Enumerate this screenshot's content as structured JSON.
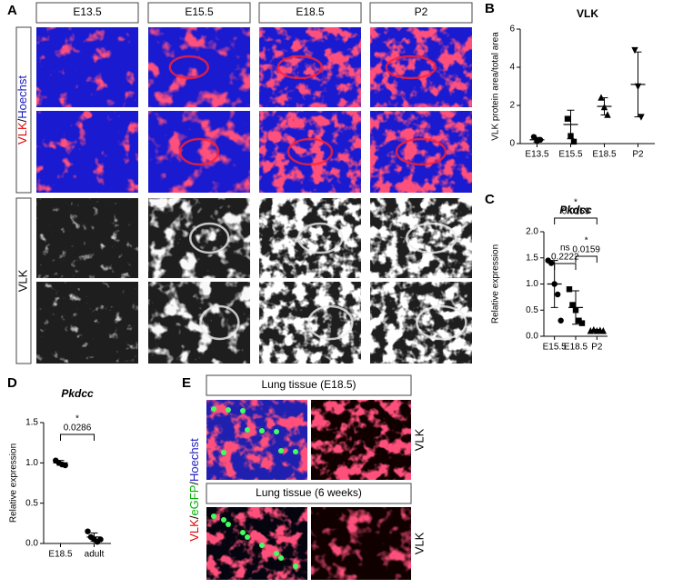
{
  "figure": {
    "panel_labels": [
      "A",
      "B",
      "C",
      "D",
      "E"
    ],
    "panel_a": {
      "columns": [
        "E13.5",
        "E15.5",
        "E18.5",
        "P2"
      ],
      "row_label_merge": [
        "VLK",
        "/",
        "Hoechst"
      ],
      "row_label_single": "VLK"
    },
    "panel_e": {
      "row_titles": [
        "Lung tissue (E18.5)",
        "Lung tissue (6 weeks)"
      ],
      "left_label": [
        "VLK",
        "/",
        "eGFP",
        "/",
        "Hoechst"
      ],
      "right_labels": [
        "VLK",
        "VLK"
      ]
    }
  },
  "chart_data": [
    {
      "type": "scatter-dot",
      "title": "VLK",
      "y_label": "VLK protein area/total area",
      "categories": [
        "E13.5",
        "E15.5",
        "E18.5",
        "P2"
      ],
      "ylim": [
        0,
        6
      ],
      "yticks": [
        0,
        2,
        4,
        6
      ],
      "markers": [
        "circle",
        "square",
        "triangle-up",
        "triangle-down"
      ],
      "color": "#000000",
      "points": [
        [
          0.35,
          0.15,
          0.2
        ],
        [
          1.3,
          0.4,
          0.1
        ],
        [
          2.4,
          1.9,
          1.5
        ],
        [
          4.9,
          3.0,
          1.4
        ]
      ],
      "means": [
        0.2,
        1.0,
        1.95,
        3.1
      ],
      "errors": [
        0.12,
        0.75,
        0.45,
        1.7
      ],
      "comparisons": []
    },
    {
      "type": "scatter-dot",
      "title": "Pkdcc",
      "y_label": "Relative expression",
      "categories": [
        "E15.5",
        "E18.5",
        "P2"
      ],
      "ylim": [
        0,
        2
      ],
      "yticks": [
        {
          "value": 0,
          "label": "0.0"
        },
        {
          "value": 0.5,
          "label": "0.5"
        },
        {
          "value": 1,
          "label": "1.0"
        },
        {
          "value": 1.5,
          "label": "1.5"
        },
        {
          "value": 2,
          "label": "2.0"
        }
      ],
      "markers": [
        "circle",
        "square",
        "triangle-up"
      ],
      "color": "#000000",
      "points": [
        [
          1.45,
          1.4,
          1.0,
          0.8,
          0.3
        ],
        [
          0.9,
          0.6,
          0.5,
          0.3,
          0.25
        ],
        [
          0.1,
          0.12,
          0.1,
          0.11,
          0.1
        ]
      ],
      "means": [
        1.0,
        0.55,
        0.11
      ],
      "errors": [
        0.45,
        0.32,
        0.02
      ],
      "comparisons": [
        {
          "label": "ns",
          "p": 0.2222
        },
        {
          "label": "*",
          "p": 0.0159
        },
        {
          "label": "*",
          "p": 0.0159
        }
      ]
    },
    {
      "type": "scatter-dot",
      "title": "Pkdcc",
      "y_label": "Relative expression",
      "categories": [
        "E18.5",
        "adult"
      ],
      "ylim": [
        0,
        1.5
      ],
      "yticks": [
        {
          "value": 0,
          "label": "0.0"
        },
        {
          "value": 0.5,
          "label": "0.5"
        },
        {
          "value": 1,
          "label": "1.0"
        },
        {
          "value": 1.5,
          "label": "1.5"
        }
      ],
      "markers": [
        "circle",
        "circle"
      ],
      "color": "#000000",
      "points": [
        [
          1.03,
          1.0,
          0.98,
          0.97
        ],
        [
          0.15,
          0.08,
          0.05,
          0.02,
          0.05
        ]
      ],
      "means": [
        1.0,
        0.08
      ],
      "errors": [
        0.03,
        0.05
      ],
      "comparisons": [
        {
          "label": "*",
          "p": 0.0286
        }
      ]
    }
  ]
}
